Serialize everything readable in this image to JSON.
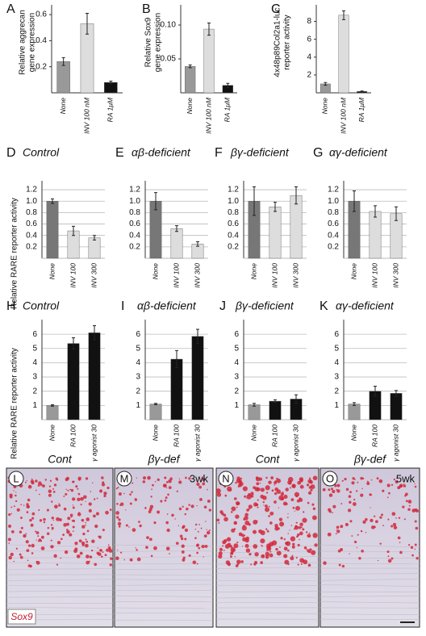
{
  "chart_data": [
    {
      "type": "bar",
      "panel": "A",
      "ylabel": [
        "Relative aggrecan",
        "gene expression"
      ],
      "categories": [
        "None",
        "INV 100 nM",
        "RA 1μM"
      ],
      "values": [
        0.24,
        0.53,
        0.08
      ],
      "errors": [
        0.03,
        0.08,
        0.01
      ],
      "colors": [
        "#999999",
        "#dddddd",
        "#111111"
      ],
      "ylim": [
        0,
        0.65
      ],
      "yticks": [
        0.2,
        0.4,
        0.6
      ],
      "grid": false
    },
    {
      "type": "bar",
      "panel": "B",
      "ylabel": [
        "Relative Sox9",
        "gene expression"
      ],
      "categories": [
        "None",
        "INV 100 nM",
        "RA 1μM"
      ],
      "values": [
        0.039,
        0.094,
        0.011
      ],
      "errors": [
        0.002,
        0.009,
        0.003
      ],
      "colors": [
        "#999999",
        "#dddddd",
        "#111111"
      ],
      "ylim": [
        0,
        0.125
      ],
      "yticks": [
        0.05,
        {
          "value": 0.1,
          "label": "0.10"
        }
      ],
      "grid": false
    },
    {
      "type": "bar",
      "panel": "C",
      "ylabel": [
        "4x48p89Col2a1-luc",
        "reporter activity"
      ],
      "categories": [
        "None",
        "INV 100 nM",
        "RA 1μM"
      ],
      "values": [
        1.0,
        8.7,
        0.15
      ],
      "errors": [
        0.15,
        0.5,
        0.05
      ],
      "colors": [
        "#999999",
        "#dddddd",
        "#111111"
      ],
      "ylim": [
        0,
        9.5
      ],
      "yticks": [
        2,
        4,
        6,
        8
      ],
      "grid": false
    },
    {
      "type": "bar",
      "panel": "D",
      "title": "Control",
      "ylabel": [
        "Relative RARE reporter activity"
      ],
      "categories": [
        "None",
        "INV 100",
        "INV 300"
      ],
      "values": [
        1.0,
        0.48,
        0.36
      ],
      "errors": [
        0.04,
        0.08,
        0.04
      ],
      "colors": [
        "#777777",
        "#dddddd",
        "#dddddd"
      ],
      "ylim": [
        0,
        1.3
      ],
      "yticks": [
        0.2,
        0.4,
        0.6,
        0.8,
        {
          "value": 1,
          "label": "1.0"
        },
        1.2
      ],
      "grid": true
    },
    {
      "type": "bar",
      "panel": "E",
      "title": "αβ-deficient",
      "categories": [
        "None",
        "INV 100",
        "INV 300"
      ],
      "values": [
        1.0,
        0.52,
        0.25
      ],
      "errors": [
        0.15,
        0.05,
        0.04
      ],
      "colors": [
        "#777777",
        "#dddddd",
        "#dddddd"
      ],
      "ylim": [
        0,
        1.3
      ],
      "yticks": [
        0.2,
        0.4,
        0.6,
        0.8,
        {
          "value": 1,
          "label": "1.0"
        },
        1.2
      ],
      "grid": true
    },
    {
      "type": "bar",
      "panel": "F",
      "title": "βγ-deficient",
      "categories": [
        "None",
        "INV 100",
        "INV 300"
      ],
      "values": [
        1.0,
        0.9,
        1.1
      ],
      "errors": [
        0.25,
        0.08,
        0.15
      ],
      "colors": [
        "#777777",
        "#dddddd",
        "#dddddd"
      ],
      "ylim": [
        0,
        1.3
      ],
      "yticks": [
        0.2,
        0.4,
        0.6,
        0.8,
        {
          "value": 1,
          "label": "1.0"
        },
        1.2
      ],
      "grid": true
    },
    {
      "type": "bar",
      "panel": "G",
      "title": "αγ-deficient",
      "categories": [
        "None",
        "INV 100",
        "INV 300"
      ],
      "values": [
        1.0,
        0.82,
        0.78
      ],
      "errors": [
        0.18,
        0.1,
        0.12
      ],
      "colors": [
        "#777777",
        "#dddddd",
        "#dddddd"
      ],
      "ylim": [
        0,
        1.3
      ],
      "yticks": [
        0.2,
        0.4,
        0.6,
        0.8,
        {
          "value": 1,
          "label": "1.0"
        },
        1.2
      ],
      "grid": true
    },
    {
      "type": "bar",
      "panel": "H",
      "title": "Control",
      "ylabel": [
        "Relative RARE reporter activity"
      ],
      "categories": [
        "None",
        "RA 100",
        "γ agonist 30"
      ],
      "values": [
        1.0,
        5.35,
        6.1
      ],
      "errors": [
        0.05,
        0.4,
        0.5
      ],
      "colors": [
        "#999999",
        "#111111",
        "#111111"
      ],
      "ylim": [
        0,
        6.8
      ],
      "yticks": [
        1,
        2,
        3,
        4,
        5,
        6
      ],
      "grid": true
    },
    {
      "type": "bar",
      "panel": "I",
      "title": "αβ-deficient",
      "categories": [
        "None",
        "RA 100",
        "γ agonist 30"
      ],
      "values": [
        1.1,
        4.25,
        5.85
      ],
      "errors": [
        0.05,
        0.6,
        0.5
      ],
      "colors": [
        "#999999",
        "#111111",
        "#111111"
      ],
      "ylim": [
        0,
        6.8
      ],
      "yticks": [
        1,
        2,
        3,
        4,
        5,
        6
      ],
      "grid": true
    },
    {
      "type": "bar",
      "panel": "J",
      "title": "βγ-deficient",
      "categories": [
        "None",
        "RA 100",
        "γ agonist 30"
      ],
      "values": [
        1.05,
        1.3,
        1.45
      ],
      "errors": [
        0.1,
        0.1,
        0.3
      ],
      "colors": [
        "#999999",
        "#111111",
        "#111111"
      ],
      "ylim": [
        0,
        6.8
      ],
      "yticks": [
        1,
        2,
        3,
        4,
        5,
        6
      ],
      "grid": true
    },
    {
      "type": "bar",
      "panel": "K",
      "title": "αγ-deficient",
      "categories": [
        "None",
        "RA 100",
        "γ agonist 30"
      ],
      "values": [
        1.1,
        2.0,
        1.85
      ],
      "errors": [
        0.1,
        0.35,
        0.2
      ],
      "colors": [
        "#999999",
        "#111111",
        "#111111"
      ],
      "ylim": [
        0,
        6.8
      ],
      "yticks": [
        1,
        2,
        3,
        4,
        5,
        6
      ],
      "grid": true
    }
  ],
  "micrographs": {
    "panels": [
      {
        "letter": "L",
        "label": "Cont"
      },
      {
        "letter": "M",
        "label": "βγ-def",
        "age": "3wk"
      },
      {
        "letter": "N",
        "label": "Cont"
      },
      {
        "letter": "O",
        "label": "βγ-def",
        "age": "5wk"
      }
    ],
    "stain": "Sox9"
  }
}
